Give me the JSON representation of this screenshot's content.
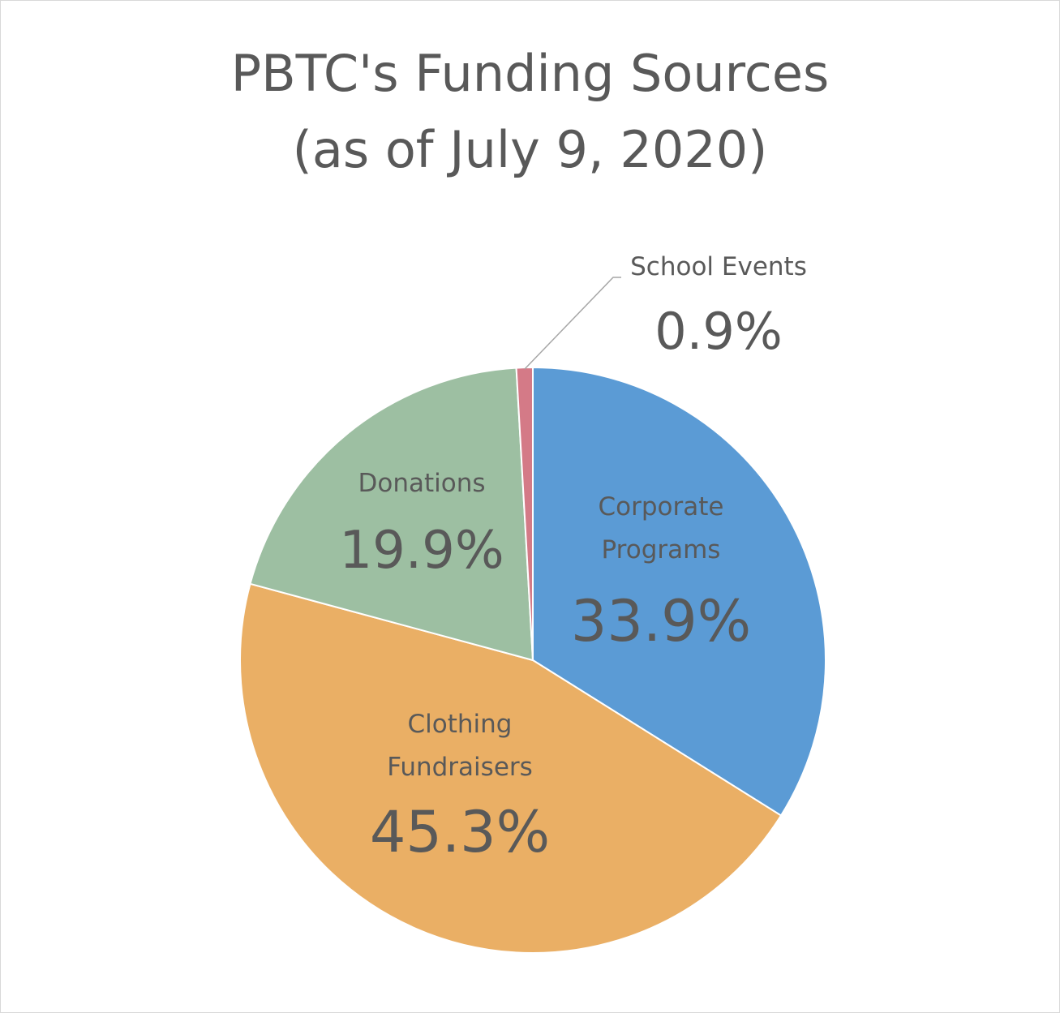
{
  "chart_data": {
    "type": "pie",
    "title_line1": "PBTC's Funding Sources",
    "title_line2": "(as of July 9, 2020)",
    "slices": [
      {
        "name_lines": [
          "Corporate",
          "Programs"
        ],
        "value": 33.9,
        "label": "33.9%",
        "color": "#5b9bd5"
      },
      {
        "name_lines": [
          "Clothing",
          "Fundraisers"
        ],
        "value": 45.3,
        "label": "45.3%",
        "color": "#eaaf65"
      },
      {
        "name_lines": [
          "Donations"
        ],
        "value": 19.9,
        "label": "19.9%",
        "color": "#9dbfa2"
      },
      {
        "name_lines": [
          "School Events"
        ],
        "value": 0.9,
        "label": "0.9%",
        "color": "#d47a87"
      }
    ],
    "legend": "none",
    "data_labels": "category name and percentage"
  }
}
